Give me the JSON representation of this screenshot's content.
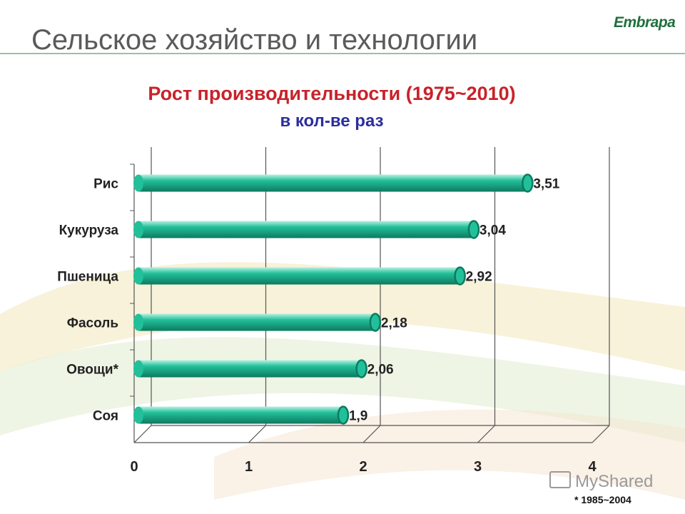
{
  "slide": {
    "title": "Сельское хозяйство и технологии",
    "logo_text": "Embrapa",
    "footnote": "* 1985~2004",
    "watermark": "MyShared"
  },
  "colors": {
    "bar_fill": "#22c09a",
    "bar_dark": "#0d7a60",
    "title": "#c8222a",
    "subtitle": "#2b2e9c",
    "slide_title": "#5a5a5a"
  },
  "chart_data": {
    "type": "bar",
    "orientation": "horizontal",
    "title": "Рост производительности (1975~2010)",
    "subtitle": "в кол-ве раз",
    "categories": [
      "Рис",
      "Кукуруза",
      "Пшеница",
      "Фасоль",
      "Овощи*",
      "Соя"
    ],
    "values": [
      3.51,
      3.04,
      2.92,
      2.18,
      2.06,
      1.9
    ],
    "value_labels": [
      "3,51",
      "3,04",
      "2,92",
      "2,18",
      "2,06",
      "1,9"
    ],
    "xlim": [
      0,
      4
    ],
    "xticks": [
      "0",
      "1",
      "2",
      "3",
      "4"
    ],
    "grid": true
  }
}
